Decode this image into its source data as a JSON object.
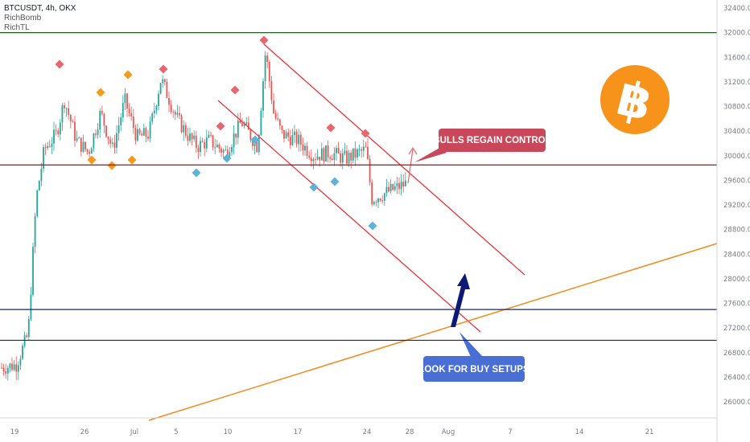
{
  "header": {
    "symbol": "BTCUSDT, 4h, OKX",
    "indicator1": "RichBomb",
    "indicator2": "RichTL"
  },
  "chart_data": {
    "type": "candlestick",
    "y_axis": {
      "ticks": [
        "32400.0",
        "32000.0",
        "31600.0",
        "31200.0",
        "30800.0",
        "30400.0",
        "30000.0",
        "29600.0",
        "29200.0",
        "28800.0",
        "28400.0",
        "28000.0",
        "27600.0",
        "27200.0",
        "26800.0",
        "26400.0",
        "26000.0"
      ],
      "ylim": [
        25800,
        32500
      ]
    },
    "x_axis": {
      "ticks": [
        "19",
        "26",
        "Jul",
        "5",
        "10",
        "17",
        "24",
        "28",
        "Aug",
        "7",
        "14",
        "21"
      ]
    },
    "levels": [
      {
        "value": 32000,
        "label": "32000.0",
        "color": "#1e5e1e"
      },
      {
        "value": 29850,
        "label": "29850.0",
        "color": "#8b1a1a"
      },
      {
        "value": 27500,
        "label": "27500.0",
        "color": "#14247a"
      },
      {
        "value": 27000,
        "label": "27000.0",
        "color": "#14247a"
      }
    ],
    "last_price": {
      "value": 29549.9,
      "label": "29549.9"
    },
    "callouts": [
      {
        "text": "BULLS REGAIN CONTROL",
        "color": "#c8475a"
      },
      {
        "text": "LOOK FOR BUY SETUPS",
        "color": "#4a6fd4"
      }
    ],
    "colors": {
      "up": "#26a69a",
      "down": "#ef5350",
      "channel": "#e8333a",
      "trendline": "#f28a1e",
      "bitcoin": "#f7931a"
    }
  }
}
